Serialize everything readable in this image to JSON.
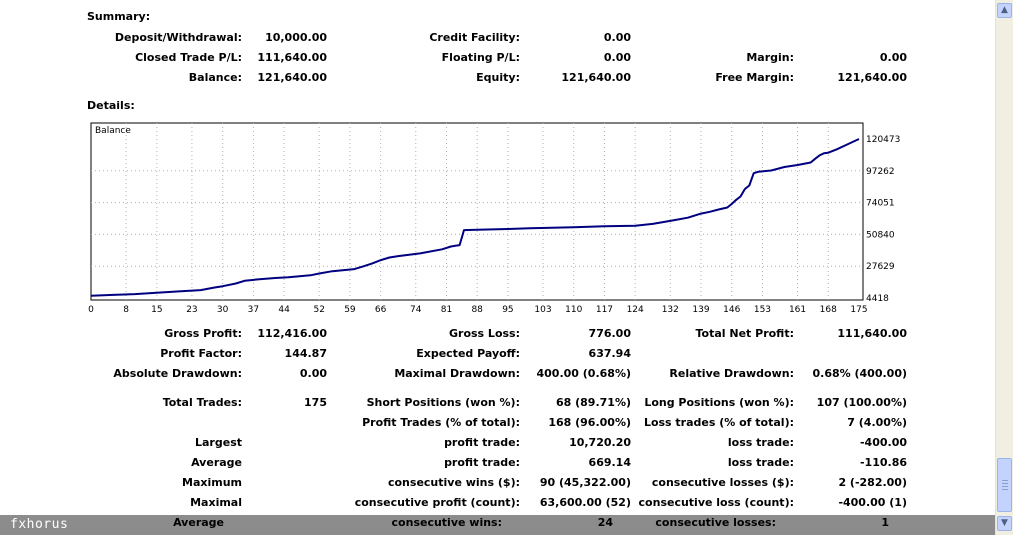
{
  "summary": {
    "heading": "Summary:",
    "rows": [
      [
        [
          "Deposit/Withdrawal:",
          "10,000.00"
        ],
        [
          "Credit Facility:",
          "0.00"
        ],
        [
          "",
          ""
        ]
      ],
      [
        [
          "Closed Trade P/L:",
          "111,640.00"
        ],
        [
          "Floating P/L:",
          "0.00"
        ],
        [
          "Margin:",
          "0.00"
        ]
      ],
      [
        [
          "Balance:",
          "121,640.00"
        ],
        [
          "Equity:",
          "121,640.00"
        ],
        [
          "Free Margin:",
          "121,640.00"
        ]
      ]
    ]
  },
  "details": {
    "heading": "Details:",
    "rows": [
      [
        [
          "Gross Profit:",
          "112,416.00"
        ],
        [
          "Gross Loss:",
          "776.00"
        ],
        [
          "Total Net Profit:",
          "111,640.00"
        ]
      ],
      [
        [
          "Profit Factor:",
          "144.87"
        ],
        [
          "Expected Payoff:",
          "637.94"
        ],
        [
          "",
          ""
        ]
      ],
      [
        [
          "Absolute Drawdown:",
          "0.00"
        ],
        [
          "Maximal Drawdown:",
          "400.00 (0.68%)"
        ],
        [
          "Relative Drawdown:",
          "0.68% (400.00)"
        ]
      ],
      [
        [
          "Total Trades:",
          "175"
        ],
        [
          "Short Positions (won %):",
          "68 (89.71%)"
        ],
        [
          "Long Positions (won %):",
          "107 (100.00%)"
        ]
      ],
      [
        [
          "",
          ""
        ],
        [
          "Profit Trades (% of total):",
          "168 (96.00%)"
        ],
        [
          "Loss trades (% of total):",
          "7 (4.00%)"
        ]
      ],
      [
        [
          "Largest",
          ""
        ],
        [
          "profit trade:",
          "10,720.20"
        ],
        [
          "loss trade:",
          "-400.00"
        ]
      ],
      [
        [
          "Average",
          ""
        ],
        [
          "profit trade:",
          "669.14"
        ],
        [
          "loss trade:",
          "-110.86"
        ]
      ],
      [
        [
          "Maximum",
          ""
        ],
        [
          "consecutive wins ($):",
          "90 (45,322.00)"
        ],
        [
          "consecutive losses ($):",
          "2 (-282.00)"
        ]
      ],
      [
        [
          "Maximal",
          ""
        ],
        [
          "consecutive profit (count):",
          "63,600.00 (52)"
        ],
        [
          "consecutive loss (count):",
          "-400.00 (1)"
        ]
      ],
      [
        [
          "Average",
          ""
        ],
        [
          "consecutive wins:",
          "24"
        ],
        [
          "consecutive losses:",
          "1"
        ]
      ]
    ]
  },
  "brand": "fxhorus",
  "chart_data": {
    "type": "line",
    "title": "Balance",
    "xlabel": "",
    "ylabel": "",
    "x_ticks": [
      "0",
      "8",
      "15",
      "23",
      "30",
      "37",
      "44",
      "52",
      "59",
      "66",
      "74",
      "81",
      "88",
      "95",
      "103",
      "110",
      "117",
      "124",
      "132",
      "139",
      "146",
      "153",
      "161",
      "168",
      "175"
    ],
    "y_ticks": [
      "120473",
      "97262",
      "74051",
      "50840",
      "27629",
      "4418"
    ],
    "xlim": [
      0,
      175
    ],
    "ylim": [
      4418,
      120473
    ],
    "grid": true,
    "line_color": "#000080",
    "series": [
      {
        "x": [
          0,
          5,
          10,
          15,
          20,
          25,
          28,
          30,
          33,
          35,
          38,
          42,
          45,
          50,
          52,
          55,
          60,
          62,
          64,
          66,
          68,
          70,
          75,
          80,
          82,
          83,
          84,
          85,
          88,
          95,
          100,
          105,
          110,
          117,
          124,
          128,
          132,
          136,
          139,
          141,
          143,
          145,
          146,
          147,
          148,
          149,
          150,
          151,
          152,
          155,
          158,
          161,
          164,
          165,
          166,
          167,
          168,
          170,
          172,
          175
        ],
        "y": [
          6000,
          6700,
          7300,
          8200,
          9200,
          10200,
          12000,
          13000,
          15000,
          17000,
          18000,
          19000,
          19500,
          21000,
          22300,
          24000,
          25500,
          27500,
          29500,
          32000,
          34000,
          35000,
          37000,
          40000,
          42000,
          42500,
          43000,
          54000,
          54300,
          54800,
          55300,
          55700,
          56000,
          56800,
          57200,
          58500,
          60700,
          63000,
          66000,
          67300,
          69000,
          70500,
          73000,
          76000,
          78500,
          84000,
          86500,
          95500,
          96500,
          97500,
          100000,
          101500,
          103300,
          106000,
          108500,
          110000,
          110500,
          113000,
          116000,
          120473
        ]
      }
    ]
  }
}
